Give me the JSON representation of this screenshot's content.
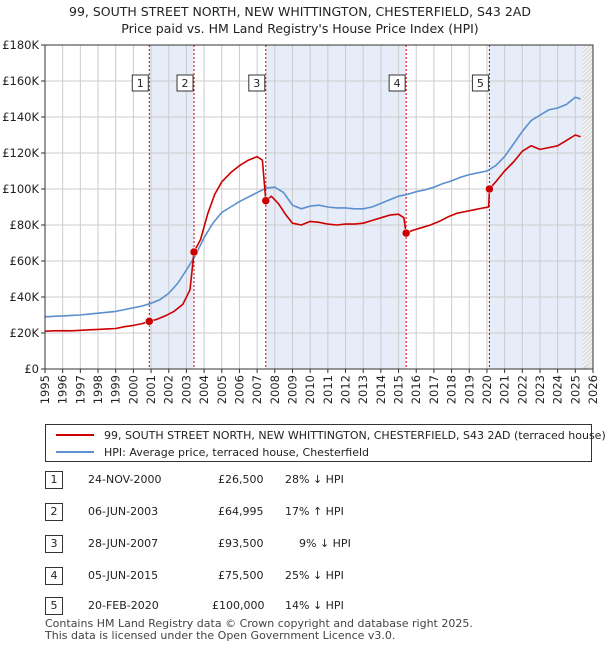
{
  "header": {
    "title_line1": "99, SOUTH STREET NORTH, NEW WHITTINGTON, CHESTERFIELD, S43 2AD",
    "title_line2": "Price paid vs. HM Land Registry's House Price Index (HPI)"
  },
  "colors": {
    "property": "#cc0000",
    "hpi": "#5b8fd0",
    "shade": "#e6ecf8",
    "grid": "#cccccc",
    "marker_line": "#cc0000"
  },
  "legend": {
    "property_label": "99, SOUTH STREET NORTH, NEW WHITTINGTON, CHESTERFIELD, S43 2AD (terraced house)",
    "hpi_label": "HPI: Average price, terraced house, Chesterfield"
  },
  "chart_data": {
    "type": "line",
    "xlim": [
      1995,
      2026
    ],
    "ylim": [
      0,
      180000
    ],
    "x_ticks": [
      1995,
      1996,
      1997,
      1998,
      1999,
      2000,
      2001,
      2002,
      2003,
      2004,
      2005,
      2006,
      2007,
      2008,
      2009,
      2010,
      2011,
      2012,
      2013,
      2014,
      2015,
      2016,
      2017,
      2018,
      2019,
      2020,
      2021,
      2022,
      2023,
      2024,
      2025,
      2026
    ],
    "x_tick_labels": [
      "1995",
      "1996",
      "1997",
      "1998",
      "1999",
      "2000",
      "2001",
      "2002",
      "2003",
      "2004",
      "2005",
      "2006",
      "2007",
      "2008",
      "2009",
      "2010",
      "2011",
      "2012",
      "2013",
      "2014",
      "2015",
      "2016",
      "2017",
      "2018",
      "2019",
      "2020",
      "2021",
      "2022",
      "2023",
      "2024",
      "2025",
      "2026"
    ],
    "y_ticks": [
      0,
      20000,
      40000,
      60000,
      80000,
      100000,
      120000,
      140000,
      160000,
      180000
    ],
    "y_tick_labels": [
      "£0",
      "£20K",
      "£40K",
      "£60K",
      "£80K",
      "£100K",
      "£120K",
      "£140K",
      "£160K",
      "£180K"
    ],
    "forecast_start": 2025.4,
    "shaded_periods": [
      [
        2000.9,
        2003.43
      ],
      [
        2007.49,
        2015.43
      ],
      [
        2020.14,
        2025.4
      ]
    ],
    "series": [
      {
        "name": "99, SOUTH STREET NORTH, NEW WHITTINGTON, CHESTERFIELD, S43 2AD (terraced house)",
        "x": [
          1995.0,
          1995.5,
          1996.0,
          1996.5,
          1997.0,
          1997.5,
          1998.0,
          1998.5,
          1999.0,
          1999.5,
          2000.0,
          2000.5,
          2000.9,
          2001.3,
          2001.8,
          2002.3,
          2002.8,
          2003.2,
          2003.43,
          2003.8,
          2004.2,
          2004.6,
          2005.0,
          2005.5,
          2006.0,
          2006.5,
          2007.0,
          2007.3,
          2007.49,
          2007.8,
          2008.2,
          2008.6,
          2009.0,
          2009.5,
          2010.0,
          2010.5,
          2011.0,
          2011.5,
          2012.0,
          2012.5,
          2013.0,
          2013.5,
          2014.0,
          2014.5,
          2015.0,
          2015.3,
          2015.43,
          2015.8,
          2016.3,
          2016.8,
          2017.3,
          2017.8,
          2018.3,
          2018.8,
          2019.3,
          2019.8,
          2020.1,
          2020.14,
          2020.5,
          2021.0,
          2021.5,
          2022.0,
          2022.5,
          2023.0,
          2023.5,
          2024.0,
          2024.5,
          2025.0,
          2025.3
        ],
        "values": [
          21000,
          21200,
          21300,
          21200,
          21500,
          21800,
          22000,
          22300,
          22500,
          23500,
          24200,
          25200,
          26500,
          27500,
          29500,
          32000,
          36000,
          44000,
          64995,
          72000,
          86000,
          97000,
          104000,
          109000,
          113000,
          116000,
          118000,
          116000,
          93500,
          96000,
          92000,
          86000,
          81000,
          80000,
          82000,
          81500,
          80500,
          80000,
          80500,
          80500,
          81000,
          82500,
          84000,
          85500,
          86000,
          84000,
          75500,
          77000,
          78500,
          80000,
          82000,
          84500,
          86500,
          87500,
          88500,
          89500,
          90000,
          100000,
          104000,
          110000,
          115000,
          121000,
          124000,
          122000,
          123000,
          124000,
          127000,
          130000,
          129000
        ]
      },
      {
        "name": "HPI: Average price, terraced house, Chesterfield",
        "x": [
          1995.0,
          1995.5,
          1996.0,
          1996.5,
          1997.0,
          1997.5,
          1998.0,
          1998.5,
          1999.0,
          1999.5,
          2000.0,
          2000.5,
          2001.0,
          2001.5,
          2002.0,
          2002.5,
          2003.0,
          2003.5,
          2004.0,
          2004.5,
          2005.0,
          2005.5,
          2006.0,
          2006.5,
          2007.0,
          2007.5,
          2008.0,
          2008.5,
          2009.0,
          2009.5,
          2010.0,
          2010.5,
          2011.0,
          2011.5,
          2012.0,
          2012.5,
          2013.0,
          2013.5,
          2014.0,
          2014.5,
          2015.0,
          2015.5,
          2016.0,
          2016.5,
          2017.0,
          2017.5,
          2018.0,
          2018.5,
          2019.0,
          2019.5,
          2020.0,
          2020.5,
          2021.0,
          2021.5,
          2022.0,
          2022.5,
          2023.0,
          2023.5,
          2024.0,
          2024.5,
          2025.0,
          2025.3
        ],
        "values": [
          29000,
          29300,
          29500,
          29800,
          30000,
          30500,
          31000,
          31500,
          32000,
          33000,
          34000,
          35000,
          36500,
          38500,
          42000,
          47500,
          55000,
          63000,
          73000,
          81000,
          87000,
          90000,
          93000,
          95500,
          98000,
          100500,
          101000,
          98000,
          91000,
          89000,
          90500,
          91000,
          90000,
          89500,
          89500,
          89000,
          89000,
          90000,
          92000,
          94000,
          96000,
          97000,
          98500,
          99500,
          101000,
          103000,
          104500,
          106500,
          108000,
          109000,
          110000,
          113000,
          118000,
          125000,
          132000,
          138000,
          141000,
          144000,
          145000,
          147000,
          151000,
          150000
        ]
      }
    ],
    "sales": [
      {
        "num": "1",
        "x": 2000.9,
        "value": 26500
      },
      {
        "num": "2",
        "x": 2003.43,
        "value": 64995
      },
      {
        "num": "3",
        "x": 2007.49,
        "value": 93500
      },
      {
        "num": "4",
        "x": 2015.43,
        "value": 75500
      },
      {
        "num": "5",
        "x": 2020.14,
        "value": 100000
      }
    ]
  },
  "sales_table": [
    {
      "num": "1",
      "date": "24-NOV-2000",
      "price": "£26,500",
      "hpi": "28% ↓ HPI"
    },
    {
      "num": "2",
      "date": "06-JUN-2003",
      "price": "£64,995",
      "hpi": "17% ↑ HPI"
    },
    {
      "num": "3",
      "date": "28-JUN-2007",
      "price": "£93,500",
      "hpi": "9% ↓ HPI"
    },
    {
      "num": "4",
      "date": "05-JUN-2015",
      "price": "£75,500",
      "hpi": "25% ↓ HPI"
    },
    {
      "num": "5",
      "date": "20-FEB-2020",
      "price": "£100,000",
      "hpi": "14% ↓ HPI"
    }
  ],
  "footer": {
    "line1": "Contains HM Land Registry data © Crown copyright and database right 2025.",
    "line2": "This data is licensed under the Open Government Licence v3.0."
  }
}
